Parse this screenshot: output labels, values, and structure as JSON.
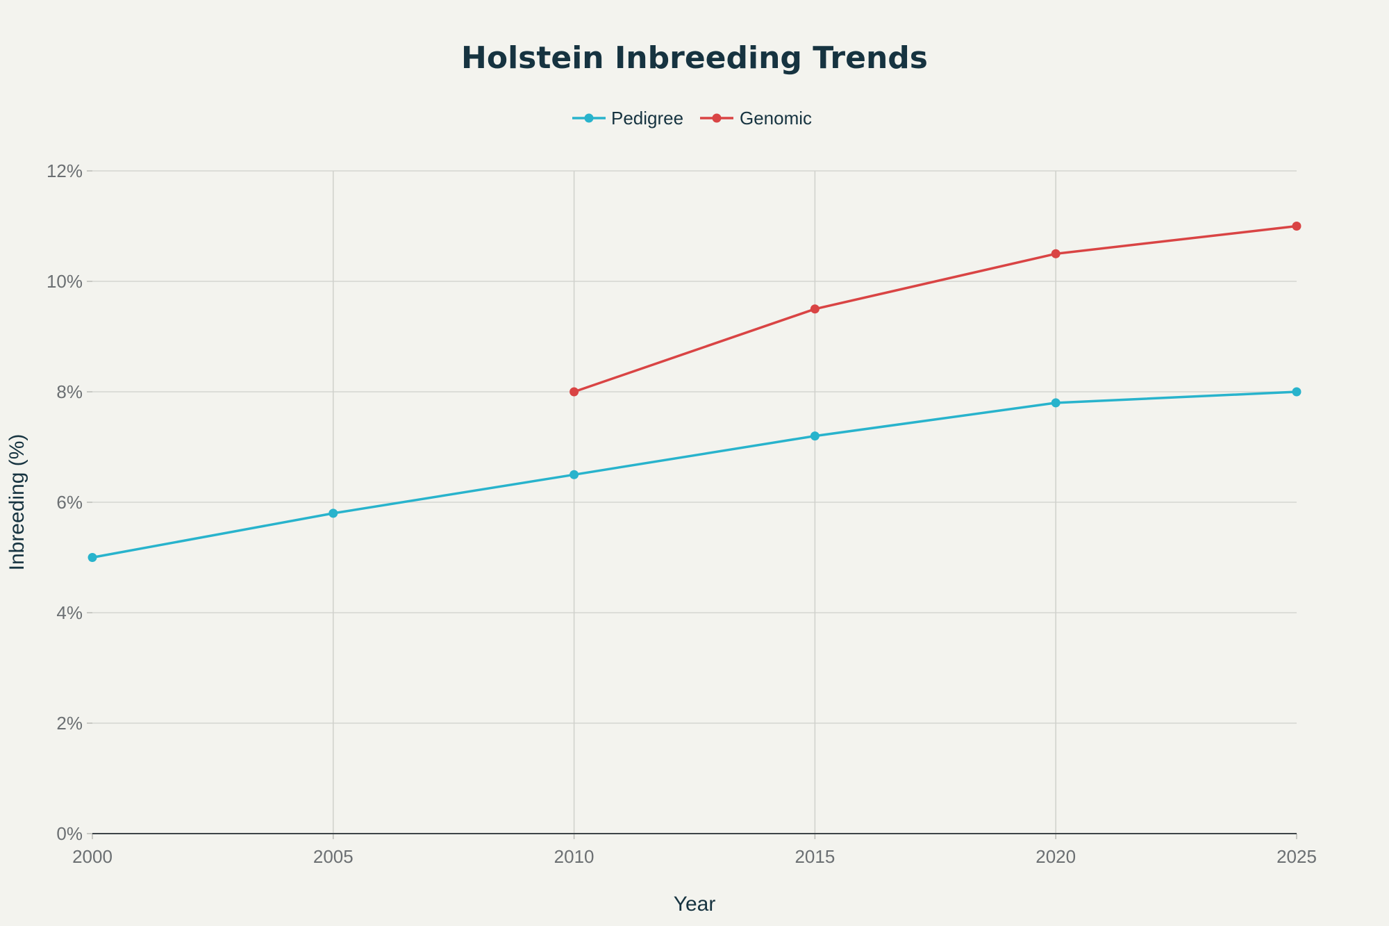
{
  "chart_data": {
    "type": "line",
    "title": "Holstein Inbreeding Trends",
    "xlabel": "Year",
    "ylabel": "Inbreeding (%)",
    "xlim": [
      2000,
      2025
    ],
    "ylim": [
      0,
      12
    ],
    "x_ticks": [
      2000,
      2005,
      2010,
      2015,
      2020,
      2025
    ],
    "y_ticks": [
      0,
      2,
      4,
      6,
      8,
      10,
      12
    ],
    "y_tick_labels": [
      "0%",
      "2%",
      "4%",
      "6%",
      "8%",
      "10%",
      "12%"
    ],
    "grid": true,
    "legend_position": "top-center",
    "series": [
      {
        "name": "Pedigree",
        "color": "#28b3cc",
        "x": [
          2000,
          2005,
          2010,
          2015,
          2020,
          2025
        ],
        "y": [
          5.0,
          5.8,
          6.5,
          7.2,
          7.8,
          8.0
        ]
      },
      {
        "name": "Genomic",
        "color": "#d94444",
        "x": [
          2010,
          2015,
          2020,
          2025
        ],
        "y": [
          8.0,
          9.5,
          10.5,
          11.0
        ]
      }
    ]
  }
}
